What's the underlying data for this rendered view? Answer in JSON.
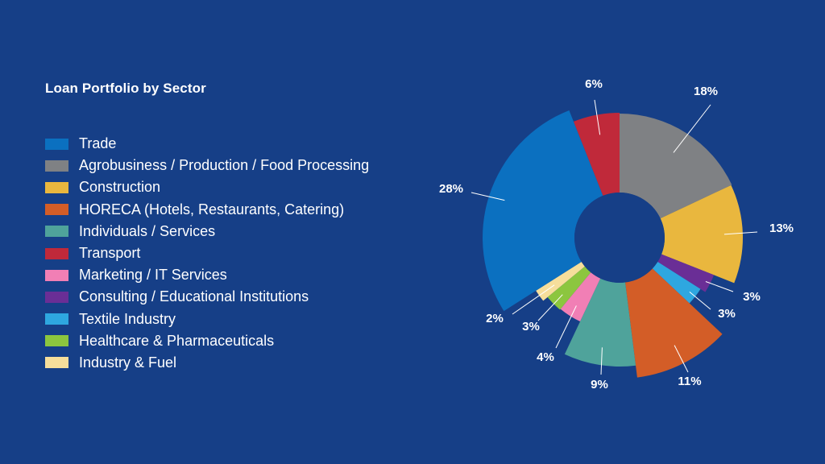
{
  "chart_data": {
    "type": "pie",
    "variant": "rose-donut",
    "title": "Loan Portfolio by Sector",
    "legend_position": "left",
    "slices": [
      {
        "label": "Agrobusiness / Production / Food Processing",
        "value": 18,
        "display": "18%",
        "color": "#7F8184"
      },
      {
        "label": "Construction",
        "value": 13,
        "display": "13%",
        "color": "#E9B73E"
      },
      {
        "label": "Consulting / Educational Institutions",
        "value": 3,
        "display": "3%",
        "color": "#6A2E96"
      },
      {
        "label": "Textile Industry",
        "value": 3,
        "display": "3%",
        "color": "#2EA7E0"
      },
      {
        "label": "HORECA (Hotels, Restaurants, Catering)",
        "value": 11,
        "display": "11%",
        "color": "#D35D27"
      },
      {
        "label": "Individuals / Services",
        "value": 9,
        "display": "9%",
        "color": "#4FA39B"
      },
      {
        "label": "Marketing / IT Services",
        "value": 4,
        "display": "4%",
        "color": "#F17FB5"
      },
      {
        "label": "Healthcare & Pharmaceuticals",
        "value": 3,
        "display": "3%",
        "color": "#8CC63F"
      },
      {
        "label": "Industry & Fuel",
        "value": 2,
        "display": "2%",
        "color": "#F6DE9B"
      },
      {
        "label": "Trade",
        "value": 28,
        "display": "28%",
        "color": "#0B70C0"
      },
      {
        "label": "Transport",
        "value": 6,
        "display": "6%",
        "color": "#C0293A"
      }
    ]
  },
  "legend": {
    "items": [
      {
        "label": "Trade",
        "color": "#0B70C0"
      },
      {
        "label": "Agrobusiness / Production / Food Processing",
        "color": "#7F8184"
      },
      {
        "label": "Construction",
        "color": "#E9B73E"
      },
      {
        "label": "HORECA (Hotels, Restaurants, Catering)",
        "color": "#D35D27"
      },
      {
        "label": "Individuals / Services",
        "color": "#4FA39B"
      },
      {
        "label": "Transport",
        "color": "#C0293A"
      },
      {
        "label": "Marketing / IT Services",
        "color": "#F17FB5"
      },
      {
        "label": "Consulting / Educational Institutions",
        "color": "#6A2E96"
      },
      {
        "label": "Textile Industry",
        "color": "#2EA7E0"
      },
      {
        "label": "Healthcare & Pharmaceuticals",
        "color": "#8CC63F"
      },
      {
        "label": "Industry & Fuel",
        "color": "#F6DE9B"
      }
    ]
  },
  "colors": {
    "background": "#163F87",
    "text": "#FFFFFF"
  }
}
